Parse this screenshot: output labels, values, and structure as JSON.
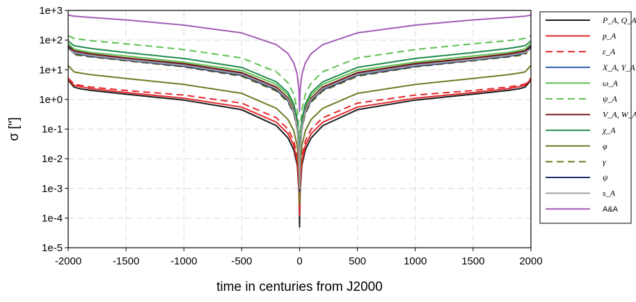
{
  "chart_data": {
    "type": "line",
    "title": "",
    "xlabel": "time in centuries from J2000",
    "ylabel": "σ [\"]",
    "xlim": [
      -2000,
      2000
    ],
    "ylim_log10": [
      -5,
      3
    ],
    "y_scale": "log",
    "grid": true,
    "legend_position": "right",
    "x_ticks": [
      -2000,
      -1500,
      -1000,
      -500,
      0,
      500,
      1000,
      1500,
      2000
    ],
    "x_tick_labels": [
      "-2000",
      "-1500",
      "-1000",
      "-500",
      "0",
      "500",
      "1000",
      "1500",
      "2000"
    ],
    "y_ticks_log10": [
      -5,
      -4,
      -3,
      -2,
      -1,
      0,
      1,
      2,
      3
    ],
    "y_tick_labels": [
      "1e-5",
      "1e-4",
      "1e-3",
      "1e-2",
      "1e-1",
      "1e+0",
      "1e+1",
      "1e+2",
      "1e+3"
    ],
    "x": [
      -2000,
      -1950,
      -1900,
      -1800,
      -1500,
      -1000,
      -500,
      -200,
      -100,
      -50,
      -20,
      -5,
      0,
      5,
      20,
      50,
      100,
      200,
      500,
      1000,
      1500,
      1800,
      1900,
      1950,
      2000
    ],
    "series": [
      {
        "name": "P_A, Q_A",
        "color": "#1a1a1a",
        "dash": false,
        "values": [
          4.5,
          2.6,
          2.3,
          2.0,
          1.5,
          0.95,
          0.45,
          0.13,
          0.05,
          0.02,
          0.006,
          0.0008,
          5e-05,
          0.0008,
          0.006,
          0.02,
          0.05,
          0.13,
          0.45,
          0.95,
          1.5,
          2.0,
          2.3,
          2.6,
          4.5
        ]
      },
      {
        "name": "p_A",
        "color": "#e3272b",
        "dash": false,
        "values": [
          4.8,
          3.0,
          2.7,
          2.3,
          1.7,
          1.1,
          0.55,
          0.17,
          0.07,
          0.028,
          0.008,
          0.0012,
          0.00012,
          0.0012,
          0.008,
          0.028,
          0.07,
          0.17,
          0.55,
          1.1,
          1.7,
          2.3,
          2.7,
          3.0,
          4.8
        ]
      },
      {
        "name": "ε_A",
        "color": "#e3272b",
        "dash": true,
        "values": [
          5.2,
          3.3,
          3.0,
          2.6,
          2.0,
          1.4,
          0.75,
          0.24,
          0.1,
          0.04,
          0.012,
          0.002,
          0.0002,
          0.002,
          0.012,
          0.04,
          0.1,
          0.24,
          0.75,
          1.4,
          2.0,
          2.6,
          3.0,
          3.3,
          5.2
        ]
      },
      {
        "name": "X_A, Y_A",
        "color": "#2f5fa7",
        "dash": false,
        "values": [
          68,
          42,
          38,
          32,
          24,
          15,
          7.5,
          2.4,
          1.0,
          0.42,
          0.13,
          0.02,
          0.001,
          0.02,
          0.13,
          0.42,
          1.0,
          2.4,
          7.5,
          15,
          24,
          32,
          38,
          42,
          68
        ]
      },
      {
        "name": "ω_A",
        "color": "#5cc04f",
        "dash": false,
        "values": [
          75,
          50,
          45,
          38,
          29,
          18,
          9.5,
          3.2,
          1.4,
          0.6,
          0.18,
          0.028,
          0.0015,
          0.028,
          0.18,
          0.6,
          1.4,
          3.2,
          9.5,
          18,
          29,
          38,
          45,
          50,
          75
        ]
      },
      {
        "name": "ψ_A",
        "color": "#5cc04f",
        "dash": true,
        "values": [
          140,
          115,
          108,
          95,
          75,
          48,
          25,
          8.5,
          3.6,
          1.5,
          0.45,
          0.07,
          0.004,
          0.07,
          0.45,
          1.5,
          3.6,
          8.5,
          25,
          48,
          75,
          95,
          108,
          115,
          140
        ]
      },
      {
        "name": "V_A, W_A",
        "color": "#7b1416",
        "dash": false,
        "values": [
          62,
          44,
          40,
          34,
          25,
          16,
          8.0,
          2.6,
          1.1,
          0.46,
          0.14,
          0.022,
          0.0012,
          0.022,
          0.14,
          0.46,
          1.1,
          2.6,
          8.0,
          16,
          25,
          34,
          40,
          44,
          62
        ]
      },
      {
        "name": "χ_A",
        "color": "#1e8a4c",
        "dash": false,
        "values": [
          92,
          65,
          60,
          52,
          38,
          24,
          12,
          3.9,
          1.7,
          0.7,
          0.21,
          0.033,
          0.0018,
          0.033,
          0.21,
          0.7,
          1.7,
          3.9,
          12,
          24,
          38,
          52,
          60,
          65,
          92
        ]
      },
      {
        "name": "φ",
        "color": "#6f7a22",
        "dash": false,
        "values": [
          14,
          8.5,
          7.8,
          6.8,
          5.1,
          3.2,
          1.6,
          0.5,
          0.21,
          0.088,
          0.027,
          0.0042,
          0.0003,
          0.0042,
          0.027,
          0.088,
          0.21,
          0.5,
          1.6,
          3.2,
          5.1,
          6.8,
          7.8,
          8.5,
          14
        ]
      },
      {
        "name": "γ",
        "color": "#6f7a22",
        "dash": true,
        "values": [
          60,
          32,
          30,
          27,
          20,
          12.5,
          6.0,
          1.9,
          0.8,
          0.33,
          0.1,
          0.016,
          0.0009,
          0.016,
          0.1,
          0.33,
          0.8,
          1.9,
          6.0,
          12.5,
          20,
          27,
          30,
          32,
          60
        ]
      },
      {
        "name": "ψ",
        "color": "#1f2e6b",
        "dash": false,
        "values": [
          58,
          36,
          33,
          28,
          21,
          13,
          6.5,
          2.1,
          0.9,
          0.37,
          0.11,
          0.018,
          0.0008,
          0.018,
          0.11,
          0.37,
          0.9,
          2.1,
          6.5,
          13,
          21,
          28,
          33,
          36,
          58
        ]
      },
      {
        "name": "s_A",
        "color": "#a3a3a3",
        "dash": false,
        "values": [
          50,
          38,
          35,
          30,
          22,
          14,
          7.0,
          2.3,
          1.0,
          0.41,
          0.12,
          0.019,
          0.001,
          0.019,
          0.12,
          0.41,
          1.0,
          2.3,
          7.0,
          14,
          22,
          30,
          35,
          38,
          50
        ]
      },
      {
        "name": "A&A",
        "color": "#a45bb5",
        "dash": false,
        "values": [
          700,
          640,
          620,
          580,
          480,
          320,
          175,
          70,
          35,
          17,
          7,
          2,
          0.4,
          2,
          7,
          17,
          35,
          70,
          175,
          320,
          480,
          580,
          620,
          640,
          700
        ]
      }
    ]
  }
}
